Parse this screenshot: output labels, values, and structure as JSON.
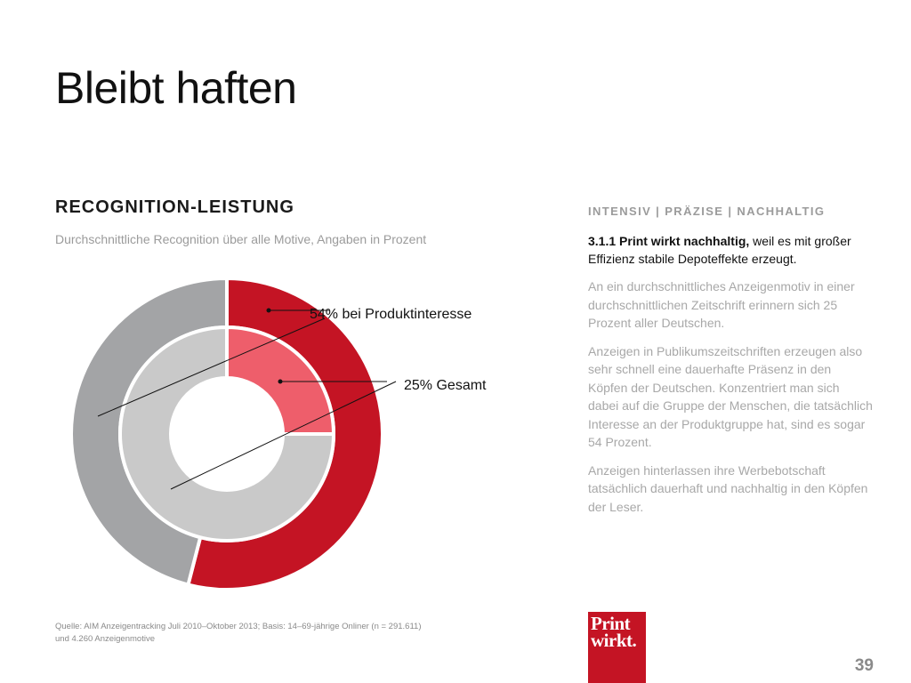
{
  "slide": {
    "title": "Bleibt haften",
    "chart_heading": "RECOGNITION-LEISTUNG",
    "chart_subheading": "Durchschnittliche Recognition über alle Motive, Angaben in Prozent",
    "source_line1": "Quelle: AIM Anzeigentracking Juli 2010–Oktober 2013; Basis: 14–69-jährige Onliner (n = 291.611)",
    "source_line2": "und 4.260  Anzeigenmotive",
    "page_number": "39"
  },
  "sidebar": {
    "tagline": "INTENSIV | PRÄZISE | NACHHALTIG",
    "intro_bold": "3.1.1 Print wirkt nachhaltig,",
    "intro_rest": " weil es mit großer Effizienz stabile Depoteffekte erzeugt.",
    "paragraphs": [
      "An ein durchschnittliches Anzeigenmotiv in einer durchschnittlichen Zeitschrift erinnern sich 25 Prozent aller Deutschen.",
      "Anzeigen in Publikumszeitschriften erzeugen also sehr schnell eine dauerhafte Präsenz in den Köpfen der Deutschen. Konzentriert man sich dabei auf die Gruppe der Menschen, die tatsächlich Interesse an der Produktgruppe hat, sind es sogar 54 Prozent.",
      "Anzeigen hinterlassen ihre Werbebotschaft tatsächlich dauerhaft und nachhaltig in den Köpfen der Leser."
    ]
  },
  "logo": {
    "line1": "Print",
    "line2": "wirkt."
  },
  "colors": {
    "outer_value": "#c41424",
    "outer_rest": "#a3a4a6",
    "inner_value": "#ee5e6b",
    "inner_rest": "#c9c9c9"
  },
  "chart_data": {
    "type": "pie",
    "subtype": "nested-donut",
    "title": "RECOGNITION-LEISTUNG",
    "subtitle": "Durchschnittliche Recognition über alle Motive, Angaben in Prozent",
    "series": [
      {
        "name": "bei Produktinteresse",
        "ring": "outer",
        "values": [
          54,
          46
        ],
        "label": "54% bei Produktinteresse"
      },
      {
        "name": "Gesamt",
        "ring": "inner",
        "values": [
          25,
          75
        ],
        "label": "25% Gesamt"
      }
    ]
  }
}
